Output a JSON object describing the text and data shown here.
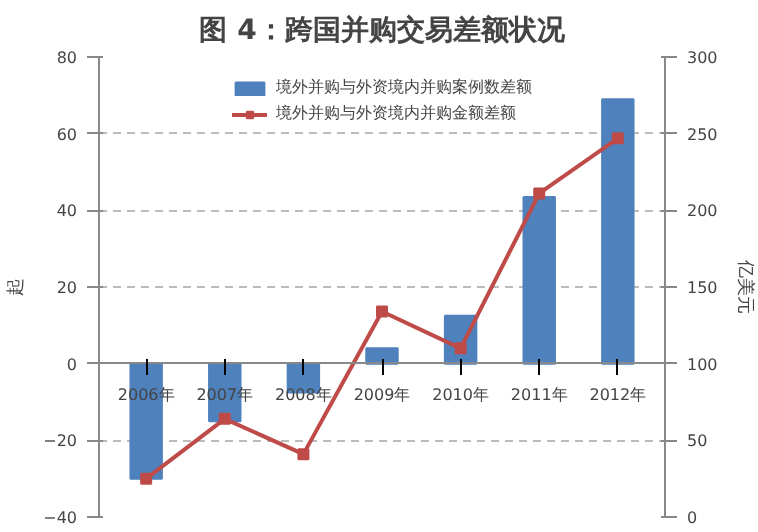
{
  "chart_data": {
    "type": "bar",
    "title": "图 4：跨国并购交易差额状况",
    "ylabel": "起",
    "y2label": "亿美元",
    "categories": [
      "2006年",
      "2007年",
      "2008年",
      "2009年",
      "2010年",
      "2011年",
      "2012年"
    ],
    "series": [
      {
        "name": "境外并购与外资境内并购案例数差额",
        "color": "#4f81bd",
        "values": [
          -30,
          -15,
          -7.5,
          4,
          12.5,
          43.5,
          69
        ]
      },
      {
        "name": "境外并购与外资境内并购金额差额",
        "type": "line",
        "axis": "y2",
        "color": "#be4b48",
        "marker": "square",
        "values": [
          25,
          64,
          41,
          134,
          110,
          211,
          247
        ]
      }
    ],
    "ylim": [
      -40,
      80
    ],
    "yticks": [
      -40,
      -20,
      0,
      20,
      40,
      60,
      80
    ],
    "y2lim": [
      0,
      300
    ],
    "y2ticks": [
      0,
      50,
      100,
      150,
      200,
      250,
      300
    ],
    "grid": "y",
    "legend": "top"
  }
}
